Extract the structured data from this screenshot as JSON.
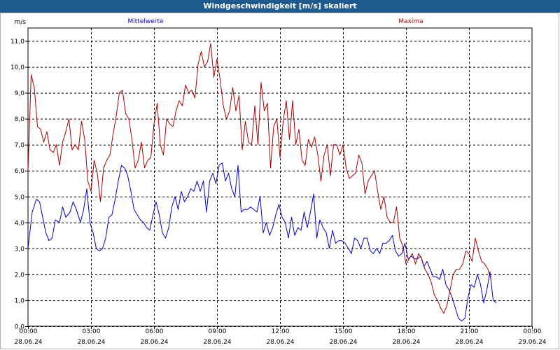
{
  "window": {
    "title": "Windgeschwindigkeit [m/s] skaliert"
  },
  "chart_data": {
    "type": "line",
    "y_unit": "m/s",
    "ylim": [
      0,
      11.5
    ],
    "yticks": [
      "0,0",
      "1,0",
      "2,0",
      "3,0",
      "4,0",
      "5,0",
      "6,0",
      "7,0",
      "8,0",
      "9,0",
      "10,0",
      "11,0"
    ],
    "xlim": [
      0,
      24
    ],
    "xticks": [
      {
        "time": "00:00",
        "date": "28.06.24"
      },
      {
        "time": "03:00",
        "date": "28.06.24"
      },
      {
        "time": "06:00",
        "date": "28.06.24"
      },
      {
        "time": "09:00",
        "date": "28.06.24"
      },
      {
        "time": "12:00",
        "date": "28.06.24"
      },
      {
        "time": "15:00",
        "date": "28.06.24"
      },
      {
        "time": "18:00",
        "date": "28.06.24"
      },
      {
        "time": "21:00",
        "date": "28.06.24"
      },
      {
        "time": "00:00",
        "date": "29.06.24"
      }
    ],
    "grid": true,
    "series": [
      {
        "name": "Mittelwerte",
        "color": "#0000c8",
        "points": [
          [
            0.0,
            3.0
          ],
          [
            0.2,
            4.4
          ],
          [
            0.4,
            4.9
          ],
          [
            0.55,
            4.8
          ],
          [
            0.7,
            4.2
          ],
          [
            0.85,
            3.6
          ],
          [
            1.0,
            3.3
          ],
          [
            1.15,
            3.4
          ],
          [
            1.3,
            4.1
          ],
          [
            1.5,
            4.0
          ],
          [
            1.65,
            4.6
          ],
          [
            1.8,
            4.2
          ],
          [
            2.0,
            4.4
          ],
          [
            2.15,
            4.8
          ],
          [
            2.3,
            4.5
          ],
          [
            2.5,
            4.0
          ],
          [
            2.65,
            4.5
          ],
          [
            2.8,
            5.3
          ],
          [
            2.95,
            4.0
          ],
          [
            3.1,
            3.6
          ],
          [
            3.25,
            3.0
          ],
          [
            3.4,
            2.9
          ],
          [
            3.55,
            3.0
          ],
          [
            3.7,
            3.4
          ],
          [
            3.85,
            4.2
          ],
          [
            4.0,
            4.3
          ],
          [
            4.15,
            4.9
          ],
          [
            4.3,
            5.6
          ],
          [
            4.45,
            6.2
          ],
          [
            4.6,
            6.1
          ],
          [
            4.75,
            5.8
          ],
          [
            4.9,
            5.2
          ],
          [
            5.05,
            4.5
          ],
          [
            5.2,
            4.3
          ],
          [
            5.35,
            4.1
          ],
          [
            5.5,
            4.0
          ],
          [
            5.65,
            3.8
          ],
          [
            5.8,
            3.7
          ],
          [
            5.95,
            4.3
          ],
          [
            6.1,
            4.8
          ],
          [
            6.25,
            4.3
          ],
          [
            6.4,
            3.6
          ],
          [
            6.55,
            3.4
          ],
          [
            6.7,
            3.8
          ],
          [
            6.85,
            4.6
          ],
          [
            7.0,
            5.0
          ],
          [
            7.15,
            4.5
          ],
          [
            7.3,
            5.2
          ],
          [
            7.45,
            4.8
          ],
          [
            7.6,
            5.0
          ],
          [
            7.75,
            5.3
          ],
          [
            7.9,
            5.2
          ],
          [
            8.05,
            5.6
          ],
          [
            8.2,
            5.2
          ],
          [
            8.35,
            5.6
          ],
          [
            8.5,
            4.4
          ],
          [
            8.65,
            5.6
          ],
          [
            8.8,
            5.9
          ],
          [
            8.95,
            5.5
          ],
          [
            9.1,
            6.2
          ],
          [
            9.25,
            6.3
          ],
          [
            9.4,
            5.6
          ],
          [
            9.55,
            5.9
          ],
          [
            9.7,
            5.3
          ],
          [
            9.85,
            5.0
          ],
          [
            10.0,
            6.2
          ],
          [
            10.15,
            4.4
          ],
          [
            10.3,
            4.5
          ],
          [
            10.45,
            4.5
          ],
          [
            10.6,
            4.6
          ],
          [
            10.75,
            4.5
          ],
          [
            10.9,
            4.4
          ],
          [
            11.05,
            5.0
          ],
          [
            11.2,
            3.6
          ],
          [
            11.35,
            4.0
          ],
          [
            11.5,
            3.5
          ],
          [
            11.65,
            3.8
          ],
          [
            11.8,
            4.3
          ],
          [
            11.95,
            4.7
          ],
          [
            12.1,
            4.2
          ],
          [
            12.25,
            4.0
          ],
          [
            12.4,
            3.4
          ],
          [
            12.55,
            4.2
          ],
          [
            12.7,
            3.5
          ],
          [
            12.85,
            3.8
          ],
          [
            13.0,
            3.7
          ],
          [
            13.15,
            4.4
          ],
          [
            13.3,
            3.8
          ],
          [
            13.45,
            4.4
          ],
          [
            13.6,
            5.1
          ],
          [
            13.75,
            3.4
          ],
          [
            13.9,
            4.1
          ],
          [
            14.05,
            3.8
          ],
          [
            14.2,
            3.6
          ],
          [
            14.35,
            3.0
          ],
          [
            14.5,
            3.7
          ],
          [
            14.65,
            3.2
          ],
          [
            14.8,
            3.3
          ],
          [
            14.95,
            3.3
          ],
          [
            15.1,
            3.2
          ],
          [
            15.25,
            3.0
          ],
          [
            15.4,
            2.8
          ],
          [
            15.55,
            3.4
          ],
          [
            15.7,
            3.3
          ],
          [
            15.85,
            3.0
          ],
          [
            16.0,
            3.4
          ],
          [
            16.15,
            3.4
          ],
          [
            16.3,
            2.9
          ],
          [
            16.45,
            2.8
          ],
          [
            16.6,
            3.0
          ],
          [
            16.75,
            2.8
          ],
          [
            16.9,
            3.2
          ],
          [
            17.05,
            3.2
          ],
          [
            17.2,
            3.3
          ],
          [
            17.35,
            3.5
          ],
          [
            17.5,
            2.9
          ],
          [
            17.65,
            2.7
          ],
          [
            17.8,
            2.8
          ],
          [
            17.95,
            3.2
          ],
          [
            18.1,
            2.6
          ],
          [
            18.25,
            2.7
          ],
          [
            18.4,
            2.6
          ],
          [
            18.55,
            2.6
          ],
          [
            18.7,
            2.7
          ],
          [
            18.85,
            2.3
          ],
          [
            19.0,
            2.5
          ],
          [
            19.15,
            2.2
          ],
          [
            19.3,
            1.9
          ],
          [
            19.45,
            1.9
          ],
          [
            19.6,
            1.8
          ],
          [
            19.75,
            2.2
          ],
          [
            19.9,
            1.6
          ],
          [
            20.05,
            1.4
          ],
          [
            20.2,
            1.1
          ],
          [
            20.35,
            0.7
          ],
          [
            20.5,
            0.3
          ],
          [
            20.65,
            0.2
          ],
          [
            20.8,
            0.3
          ],
          [
            20.95,
            1.1
          ],
          [
            21.1,
            1.6
          ],
          [
            21.25,
            1.5
          ],
          [
            21.4,
            2.0
          ],
          [
            21.55,
            1.6
          ],
          [
            21.7,
            0.9
          ],
          [
            21.85,
            1.4
          ],
          [
            22.0,
            2.1
          ],
          [
            22.15,
            1.0
          ],
          [
            22.3,
            0.9
          ]
        ]
      },
      {
        "name": "Maxima",
        "color": "#aa0000",
        "points": [
          [
            0.0,
            6.0
          ],
          [
            0.15,
            9.7
          ],
          [
            0.3,
            9.2
          ],
          [
            0.45,
            7.7
          ],
          [
            0.6,
            7.6
          ],
          [
            0.75,
            7.1
          ],
          [
            0.9,
            7.5
          ],
          [
            1.05,
            6.8
          ],
          [
            1.2,
            6.7
          ],
          [
            1.35,
            7.0
          ],
          [
            1.5,
            6.2
          ],
          [
            1.65,
            7.1
          ],
          [
            1.8,
            7.5
          ],
          [
            1.95,
            8.0
          ],
          [
            2.1,
            6.8
          ],
          [
            2.25,
            7.0
          ],
          [
            2.4,
            6.8
          ],
          [
            2.55,
            7.9
          ],
          [
            2.7,
            7.2
          ],
          [
            2.85,
            5.6
          ],
          [
            3.0,
            5.2
          ],
          [
            3.15,
            6.4
          ],
          [
            3.3,
            5.9
          ],
          [
            3.45,
            4.8
          ],
          [
            3.6,
            6.1
          ],
          [
            3.75,
            6.4
          ],
          [
            3.9,
            6.6
          ],
          [
            4.05,
            7.4
          ],
          [
            4.2,
            8.1
          ],
          [
            4.35,
            9.0
          ],
          [
            4.5,
            9.1
          ],
          [
            4.65,
            8.2
          ],
          [
            4.8,
            8.0
          ],
          [
            4.95,
            7.2
          ],
          [
            5.1,
            6.1
          ],
          [
            5.25,
            6.4
          ],
          [
            5.4,
            7.1
          ],
          [
            5.55,
            6.1
          ],
          [
            5.7,
            6.4
          ],
          [
            5.85,
            6.5
          ],
          [
            6.0,
            7.8
          ],
          [
            6.15,
            8.6
          ],
          [
            6.3,
            7.0
          ],
          [
            6.45,
            6.6
          ],
          [
            6.6,
            8.0
          ],
          [
            6.75,
            7.8
          ],
          [
            6.9,
            7.7
          ],
          [
            7.05,
            8.3
          ],
          [
            7.2,
            8.7
          ],
          [
            7.35,
            8.5
          ],
          [
            7.5,
            9.3
          ],
          [
            7.65,
            9.0
          ],
          [
            7.8,
            9.1
          ],
          [
            7.95,
            8.8
          ],
          [
            8.1,
            10.1
          ],
          [
            8.25,
            10.6
          ],
          [
            8.4,
            10.0
          ],
          [
            8.55,
            10.2
          ],
          [
            8.7,
            10.9
          ],
          [
            8.85,
            9.6
          ],
          [
            9.0,
            10.3
          ],
          [
            9.15,
            9.5
          ],
          [
            9.3,
            8.5
          ],
          [
            9.45,
            8.0
          ],
          [
            9.6,
            8.3
          ],
          [
            9.75,
            9.2
          ],
          [
            9.9,
            8.3
          ],
          [
            10.05,
            8.9
          ],
          [
            10.2,
            6.8
          ],
          [
            10.35,
            7.9
          ],
          [
            10.5,
            7.1
          ],
          [
            10.65,
            7.0
          ],
          [
            10.8,
            8.5
          ],
          [
            10.95,
            7.0
          ],
          [
            11.1,
            9.4
          ],
          [
            11.25,
            8.3
          ],
          [
            11.4,
            8.6
          ],
          [
            11.55,
            6.1
          ],
          [
            11.7,
            7.7
          ],
          [
            11.85,
            8.0
          ],
          [
            12.0,
            6.5
          ],
          [
            12.15,
            7.9
          ],
          [
            12.3,
            8.7
          ],
          [
            12.45,
            7.2
          ],
          [
            12.6,
            8.7
          ],
          [
            12.75,
            7.0
          ],
          [
            12.9,
            7.6
          ],
          [
            13.05,
            6.4
          ],
          [
            13.2,
            6.2
          ],
          [
            13.35,
            7.2
          ],
          [
            13.5,
            6.9
          ],
          [
            13.65,
            7.3
          ],
          [
            13.8,
            6.6
          ],
          [
            13.95,
            5.6
          ],
          [
            14.1,
            6.6
          ],
          [
            14.25,
            7.0
          ],
          [
            14.4,
            5.8
          ],
          [
            14.55,
            7.0
          ],
          [
            14.7,
            7.0
          ],
          [
            14.85,
            6.6
          ],
          [
            15.0,
            7.0
          ],
          [
            15.15,
            6.1
          ],
          [
            15.3,
            5.7
          ],
          [
            15.45,
            5.8
          ],
          [
            15.6,
            5.9
          ],
          [
            15.75,
            6.6
          ],
          [
            15.9,
            6.3
          ],
          [
            16.05,
            5.1
          ],
          [
            16.2,
            5.6
          ],
          [
            16.35,
            5.8
          ],
          [
            16.5,
            6.0
          ],
          [
            16.65,
            5.2
          ],
          [
            16.8,
            4.5
          ],
          [
            16.95,
            5.0
          ],
          [
            17.1,
            4.2
          ],
          [
            17.25,
            4.0
          ],
          [
            17.4,
            4.0
          ],
          [
            17.55,
            4.6
          ],
          [
            17.7,
            3.4
          ],
          [
            17.85,
            3.1
          ],
          [
            18.0,
            2.4
          ],
          [
            18.15,
            2.6
          ],
          [
            18.3,
            2.8
          ],
          [
            18.45,
            2.4
          ],
          [
            18.6,
            2.8
          ],
          [
            18.75,
            2.6
          ],
          [
            18.9,
            2.2
          ],
          [
            19.05,
            2.0
          ],
          [
            19.2,
            1.7
          ],
          [
            19.35,
            1.2
          ],
          [
            19.5,
            1.0
          ],
          [
            19.65,
            0.7
          ],
          [
            19.8,
            0.5
          ],
          [
            19.95,
            0.8
          ],
          [
            20.1,
            1.4
          ],
          [
            20.25,
            2.0
          ],
          [
            20.4,
            2.2
          ],
          [
            20.55,
            2.2
          ],
          [
            20.7,
            2.4
          ],
          [
            20.85,
            2.9
          ],
          [
            21.0,
            2.8
          ],
          [
            21.15,
            2.5
          ],
          [
            21.3,
            3.4
          ],
          [
            21.45,
            2.9
          ],
          [
            21.6,
            2.5
          ],
          [
            21.75,
            2.4
          ],
          [
            21.9,
            2.2
          ],
          [
            22.05,
            1.8
          ]
        ]
      }
    ]
  }
}
